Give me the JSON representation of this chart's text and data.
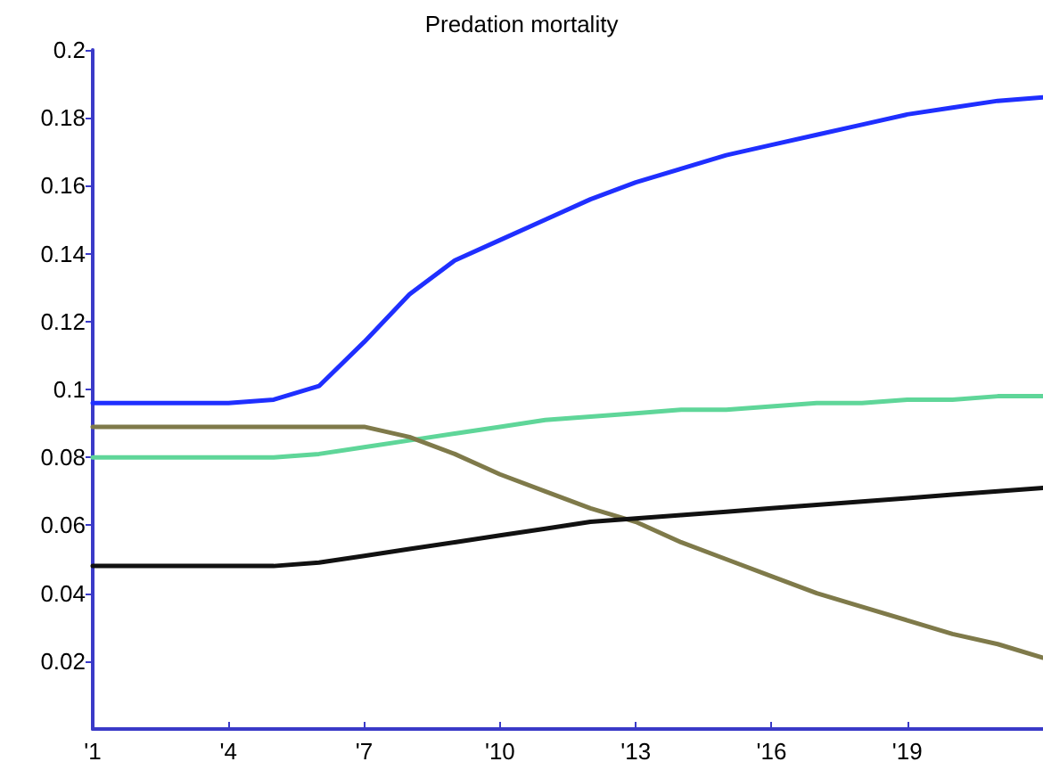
{
  "chart_data": {
    "type": "line",
    "title": "Predation mortality",
    "x": [
      1,
      2,
      3,
      4,
      5,
      6,
      7,
      8,
      9,
      10,
      11,
      12,
      13,
      14,
      15,
      16,
      17,
      18,
      19,
      20,
      21,
      22
    ],
    "xlim": [
      1,
      22
    ],
    "xticks": [
      {
        "value": 1,
        "label": "'1"
      },
      {
        "value": 4,
        "label": "'4"
      },
      {
        "value": 7,
        "label": "'7"
      },
      {
        "value": 10,
        "label": "'10"
      },
      {
        "value": 13,
        "label": "'13"
      },
      {
        "value": 16,
        "label": "'16"
      },
      {
        "value": 19,
        "label": "'19"
      }
    ],
    "ylim": [
      0,
      0.2
    ],
    "yticks": [
      0.02,
      0.04,
      0.06,
      0.08,
      0.1,
      0.12,
      0.14,
      0.16,
      0.18,
      0.2
    ],
    "grid": false,
    "marker": "none",
    "line_style": "solid",
    "series": [
      {
        "color": "#1f2fff",
        "values": [
          0.096,
          0.096,
          0.096,
          0.096,
          0.097,
          0.101,
          0.114,
          0.128,
          0.138,
          0.144,
          0.15,
          0.156,
          0.161,
          0.165,
          0.169,
          0.172,
          0.175,
          0.178,
          0.181,
          0.183,
          0.185,
          0.186
        ]
      },
      {
        "color": "#5fd699",
        "values": [
          0.08,
          0.08,
          0.08,
          0.08,
          0.08,
          0.081,
          0.083,
          0.085,
          0.087,
          0.089,
          0.091,
          0.092,
          0.093,
          0.094,
          0.094,
          0.095,
          0.096,
          0.096,
          0.097,
          0.097,
          0.098,
          0.098
        ]
      },
      {
        "color": "#7f7a4a",
        "values": [
          0.089,
          0.089,
          0.089,
          0.089,
          0.089,
          0.089,
          0.089,
          0.086,
          0.081,
          0.075,
          0.07,
          0.065,
          0.061,
          0.055,
          0.05,
          0.045,
          0.04,
          0.036,
          0.032,
          0.028,
          0.025,
          0.021
        ]
      },
      {
        "color": "#111111",
        "values": [
          0.048,
          0.048,
          0.048,
          0.048,
          0.048,
          0.049,
          0.051,
          0.053,
          0.055,
          0.057,
          0.059,
          0.061,
          0.062,
          0.063,
          0.064,
          0.065,
          0.066,
          0.067,
          0.068,
          0.069,
          0.07,
          0.071
        ]
      }
    ]
  }
}
